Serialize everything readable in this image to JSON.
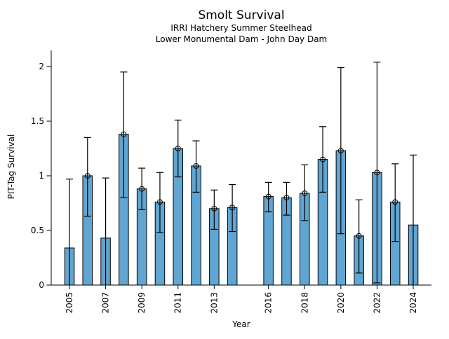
{
  "chart_data": {
    "type": "bar",
    "title": "Smolt Survival",
    "subtitle_line1": "IRRI Hatchery Summer Steelhead",
    "subtitle_line2": "Lower Monumental Dam - John Day Dam",
    "xlabel": "Year",
    "ylabel": "PIT-Tag Survival",
    "ylim": [
      0,
      2.16
    ],
    "yticks": [
      0,
      0.5,
      1,
      1.5,
      2
    ],
    "ytick_labels": [
      "0",
      "0.5",
      "1",
      "1.5",
      "2"
    ],
    "xtick_labeled_years": [
      2005,
      2007,
      2009,
      2011,
      2013,
      2016,
      2018,
      2020,
      2022,
      2024
    ],
    "grid": false,
    "legend": "none",
    "bar_color": "#61a5d2",
    "bar_edge_color": "#000000",
    "errorbar_color": "#000000",
    "points": [
      {
        "year": 2005,
        "value": 0.34,
        "ci_low": 0.0,
        "ci_high": 0.97,
        "marker": false
      },
      {
        "year": 2006,
        "value": 1.0,
        "ci_low": 0.63,
        "ci_high": 1.35,
        "marker": true
      },
      {
        "year": 2007,
        "value": 0.43,
        "ci_low": 0.0,
        "ci_high": 0.98,
        "marker": false
      },
      {
        "year": 2008,
        "value": 1.38,
        "ci_low": 0.8,
        "ci_high": 1.95,
        "marker": true
      },
      {
        "year": 2009,
        "value": 0.88,
        "ci_low": 0.69,
        "ci_high": 1.07,
        "marker": true
      },
      {
        "year": 2010,
        "value": 0.76,
        "ci_low": 0.48,
        "ci_high": 1.03,
        "marker": true
      },
      {
        "year": 2011,
        "value": 1.25,
        "ci_low": 0.99,
        "ci_high": 1.51,
        "marker": true
      },
      {
        "year": 2012,
        "value": 1.09,
        "ci_low": 0.85,
        "ci_high": 1.32,
        "marker": true
      },
      {
        "year": 2013,
        "value": 0.7,
        "ci_low": 0.51,
        "ci_high": 0.87,
        "marker": true
      },
      {
        "year": 2014,
        "value": 0.71,
        "ci_low": 0.49,
        "ci_high": 0.92,
        "marker": true
      },
      {
        "year": 2016,
        "value": 0.81,
        "ci_low": 0.67,
        "ci_high": 0.94,
        "marker": true
      },
      {
        "year": 2017,
        "value": 0.8,
        "ci_low": 0.64,
        "ci_high": 0.94,
        "marker": true
      },
      {
        "year": 2018,
        "value": 0.84,
        "ci_low": 0.59,
        "ci_high": 1.1,
        "marker": true
      },
      {
        "year": 2019,
        "value": 1.15,
        "ci_low": 0.85,
        "ci_high": 1.45,
        "marker": true
      },
      {
        "year": 2020,
        "value": 1.23,
        "ci_low": 0.47,
        "ci_high": 1.99,
        "marker": true
      },
      {
        "year": 2021,
        "value": 0.45,
        "ci_low": 0.11,
        "ci_high": 0.78,
        "marker": true
      },
      {
        "year": 2022,
        "value": 1.03,
        "ci_low": 0.02,
        "ci_high": 2.04,
        "marker": true
      },
      {
        "year": 2023,
        "value": 0.76,
        "ci_low": 0.4,
        "ci_high": 1.11,
        "marker": true
      },
      {
        "year": 2024,
        "value": 0.55,
        "ci_low": 0.0,
        "ci_high": 1.19,
        "marker": false
      }
    ]
  }
}
